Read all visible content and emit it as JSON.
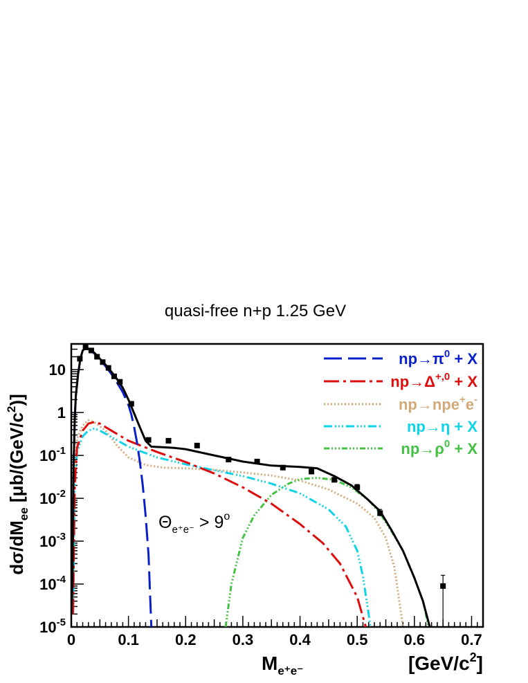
{
  "chart_data": {
    "type": "line",
    "title": "quasi-free n+p 1.25 GeV",
    "ylabel": "dσ/dM",
    "ylabel_sub": "ee",
    "ylabel_unit": " [μb/(GeV/c",
    "ylabel_unit_sup": "2",
    "ylabel_unit_end": ")]",
    "xlabel": "M",
    "xlabel_sub": "e⁺e⁻",
    "xunit": "[GeV/c",
    "xunit_sup": "2",
    "xunit_end": "]",
    "xlim": [
      0,
      0.72
    ],
    "ylim_log10": [
      -5,
      1.6
    ],
    "y_scale": "log",
    "x_ticks": [
      {
        "v": 0,
        "label": "0"
      },
      {
        "v": 0.1,
        "label": "0.1"
      },
      {
        "v": 0.2,
        "label": "0.2"
      },
      {
        "v": 0.3,
        "label": "0.3"
      },
      {
        "v": 0.4,
        "label": "0.4"
      },
      {
        "v": 0.5,
        "label": "0.5"
      },
      {
        "v": 0.6,
        "label": "0.6"
      },
      {
        "v": 0.7,
        "label": "0.7"
      }
    ],
    "y_ticks": [
      {
        "e": 1,
        "label": "10"
      },
      {
        "e": 0,
        "label": "1"
      },
      {
        "e": -1,
        "base": "10",
        "sup": "-1"
      },
      {
        "e": -2,
        "base": "10",
        "sup": "-2"
      },
      {
        "e": -3,
        "base": "10",
        "sup": "-3"
      },
      {
        "e": -4,
        "base": "10",
        "sup": "-4"
      },
      {
        "e": -5,
        "base": "10",
        "sup": "-5"
      }
    ],
    "annotation": {
      "text": "Θ",
      "sub": "e⁺e⁻",
      "rest": " > 9",
      "sup": "o"
    },
    "data_points": [
      {
        "x": 0.015,
        "y": 18
      },
      {
        "x": 0.025,
        "y": 33
      },
      {
        "x": 0.035,
        "y": 28
      },
      {
        "x": 0.045,
        "y": 20
      },
      {
        "x": 0.055,
        "y": 15
      },
      {
        "x": 0.065,
        "y": 11
      },
      {
        "x": 0.075,
        "y": 7
      },
      {
        "x": 0.085,
        "y": 5.2
      },
      {
        "x": 0.105,
        "y": 1.6
      },
      {
        "x": 0.135,
        "y": 0.23
      },
      {
        "x": 0.17,
        "y": 0.22
      },
      {
        "x": 0.22,
        "y": 0.17
      },
      {
        "x": 0.275,
        "y": 0.08
      },
      {
        "x": 0.325,
        "y": 0.072
      },
      {
        "x": 0.37,
        "y": 0.052
      },
      {
        "x": 0.42,
        "y": 0.042
      },
      {
        "x": 0.46,
        "y": 0.027
      },
      {
        "x": 0.5,
        "y": 0.018
      },
      {
        "x": 0.54,
        "y": 0.0045
      },
      {
        "x": 0.65,
        "y": 9e-05
      }
    ],
    "error_bars": [
      {
        "x": 0.5,
        "lo": 0.015,
        "hi": 0.021
      },
      {
        "x": 0.54,
        "lo": 0.0038,
        "hi": 0.0055
      },
      {
        "x": 0.65,
        "lo": 1e-05,
        "hi": 0.00016
      }
    ],
    "series": [
      {
        "key": "total",
        "color": "#000000",
        "dash": "",
        "points": [
          [
            0.0,
            2e-05
          ],
          [
            0.002,
            0.0001
          ],
          [
            0.004,
            0.05
          ],
          [
            0.006,
            0.7
          ],
          [
            0.008,
            2.5
          ],
          [
            0.012,
            8
          ],
          [
            0.016,
            18
          ],
          [
            0.02,
            28
          ],
          [
            0.025,
            32
          ],
          [
            0.03,
            31
          ],
          [
            0.04,
            25
          ],
          [
            0.05,
            18
          ],
          [
            0.06,
            13
          ],
          [
            0.07,
            9
          ],
          [
            0.08,
            6
          ],
          [
            0.09,
            3.8
          ],
          [
            0.1,
            2.0
          ],
          [
            0.11,
            0.95
          ],
          [
            0.12,
            0.45
          ],
          [
            0.13,
            0.22
          ],
          [
            0.14,
            0.16
          ],
          [
            0.16,
            0.155
          ],
          [
            0.18,
            0.15
          ],
          [
            0.2,
            0.14
          ],
          [
            0.25,
            0.1
          ],
          [
            0.3,
            0.072
          ],
          [
            0.35,
            0.058
          ],
          [
            0.4,
            0.054
          ],
          [
            0.43,
            0.05
          ],
          [
            0.46,
            0.033
          ],
          [
            0.49,
            0.02
          ],
          [
            0.52,
            0.009
          ],
          [
            0.54,
            0.005
          ],
          [
            0.56,
            0.0018
          ],
          [
            0.58,
            0.0006
          ],
          [
            0.6,
            0.00014
          ],
          [
            0.615,
            4e-05
          ],
          [
            0.627,
            1e-05
          ]
        ]
      },
      {
        "key": "pi0",
        "name": "np→π⁰ + X",
        "legend": {
          "pre": "np→π",
          "sup": "0",
          "post": " + X"
        },
        "color": "#0a1fcc",
        "dash": "26,9",
        "points": [
          [
            0.0,
            2e-05
          ],
          [
            0.002,
            0.0001
          ],
          [
            0.004,
            0.05
          ],
          [
            0.006,
            0.7
          ],
          [
            0.008,
            2.5
          ],
          [
            0.012,
            8
          ],
          [
            0.016,
            18
          ],
          [
            0.02,
            28
          ],
          [
            0.025,
            32
          ],
          [
            0.03,
            30
          ],
          [
            0.04,
            24
          ],
          [
            0.05,
            17
          ],
          [
            0.06,
            12
          ],
          [
            0.07,
            8
          ],
          [
            0.08,
            5
          ],
          [
            0.09,
            3
          ],
          [
            0.1,
            1.5
          ],
          [
            0.105,
            0.9
          ],
          [
            0.11,
            0.45
          ],
          [
            0.115,
            0.2
          ],
          [
            0.12,
            0.07
          ],
          [
            0.125,
            0.02
          ],
          [
            0.13,
            0.004
          ],
          [
            0.135,
            0.0005
          ],
          [
            0.14,
            1e-05
          ]
        ]
      },
      {
        "key": "delta",
        "name": "np→Δ⁺,⁰ + X",
        "legend": {
          "pre": "np→Δ",
          "sup": "+,0",
          "post": " + X"
        },
        "color": "#dd0b0b",
        "dash": "22,6,4,6",
        "points": [
          [
            0.003,
            2e-05
          ],
          [
            0.006,
            0.02
          ],
          [
            0.01,
            0.15
          ],
          [
            0.02,
            0.38
          ],
          [
            0.03,
            0.55
          ],
          [
            0.04,
            0.6
          ],
          [
            0.05,
            0.55
          ],
          [
            0.07,
            0.38
          ],
          [
            0.1,
            0.22
          ],
          [
            0.15,
            0.12
          ],
          [
            0.2,
            0.07
          ],
          [
            0.25,
            0.038
          ],
          [
            0.3,
            0.018
          ],
          [
            0.35,
            0.0075
          ],
          [
            0.4,
            0.0025
          ],
          [
            0.44,
            0.0009
          ],
          [
            0.47,
            0.0003
          ],
          [
            0.5,
            5e-05
          ],
          [
            0.515,
            1e-05
          ]
        ]
      },
      {
        "key": "brems",
        "name": "np→npe⁺e⁻",
        "legend": {
          "pre": "np→npe",
          "sup": "+",
          "mid": "e",
          "sup2": "-"
        },
        "color": "#d4a97a",
        "dash": "2,3",
        "points": [
          [
            0.003,
            2e-05
          ],
          [
            0.006,
            0.05
          ],
          [
            0.01,
            0.25
          ],
          [
            0.02,
            0.5
          ],
          [
            0.03,
            0.66
          ],
          [
            0.04,
            0.6
          ],
          [
            0.06,
            0.38
          ],
          [
            0.08,
            0.17
          ],
          [
            0.1,
            0.09
          ],
          [
            0.13,
            0.06
          ],
          [
            0.16,
            0.052
          ],
          [
            0.2,
            0.05
          ],
          [
            0.25,
            0.046
          ],
          [
            0.3,
            0.04
          ],
          [
            0.35,
            0.034
          ],
          [
            0.4,
            0.026
          ],
          [
            0.45,
            0.016
          ],
          [
            0.5,
            0.0075
          ],
          [
            0.53,
            0.0035
          ],
          [
            0.55,
            0.0012
          ],
          [
            0.565,
            0.00025
          ],
          [
            0.575,
            3e-05
          ],
          [
            0.58,
            1e-05
          ]
        ]
      },
      {
        "key": "eta",
        "name": "np→η + X",
        "legend": {
          "pre": "np→η + X"
        },
        "color": "#0fd3e6",
        "dash": "12,4,2,3,2,3,2,4",
        "points": [
          [
            0.003,
            2e-05
          ],
          [
            0.006,
            0.02
          ],
          [
            0.01,
            0.12
          ],
          [
            0.02,
            0.28
          ],
          [
            0.03,
            0.38
          ],
          [
            0.04,
            0.42
          ],
          [
            0.05,
            0.38
          ],
          [
            0.07,
            0.27
          ],
          [
            0.1,
            0.16
          ],
          [
            0.15,
            0.09
          ],
          [
            0.2,
            0.062
          ],
          [
            0.25,
            0.045
          ],
          [
            0.3,
            0.033
          ],
          [
            0.35,
            0.022
          ],
          [
            0.4,
            0.013
          ],
          [
            0.45,
            0.0055
          ],
          [
            0.48,
            0.0022
          ],
          [
            0.5,
            0.0006
          ],
          [
            0.51,
            0.00015
          ],
          [
            0.52,
            2e-05
          ],
          [
            0.523,
            1e-05
          ]
        ]
      },
      {
        "key": "rho",
        "name": "np→ρ⁰ + X",
        "legend": {
          "pre": "np→ρ",
          "sup": "0",
          "post": " + X"
        },
        "color": "#44c144",
        "dash": "8,3,2,3,2,3,2,3",
        "points": [
          [
            0.27,
            1e-05
          ],
          [
            0.28,
            0.0001
          ],
          [
            0.3,
            0.0012
          ],
          [
            0.32,
            0.004
          ],
          [
            0.35,
            0.012
          ],
          [
            0.38,
            0.022
          ],
          [
            0.4,
            0.028
          ],
          [
            0.43,
            0.03
          ],
          [
            0.46,
            0.027
          ],
          [
            0.49,
            0.018
          ],
          [
            0.52,
            0.009
          ],
          [
            0.54,
            0.0045
          ],
          [
            0.56,
            0.0017
          ],
          [
            0.58,
            0.0006
          ],
          [
            0.6,
            0.00014
          ],
          [
            0.615,
            4e-05
          ],
          [
            0.625,
            1e-05
          ]
        ]
      }
    ]
  }
}
